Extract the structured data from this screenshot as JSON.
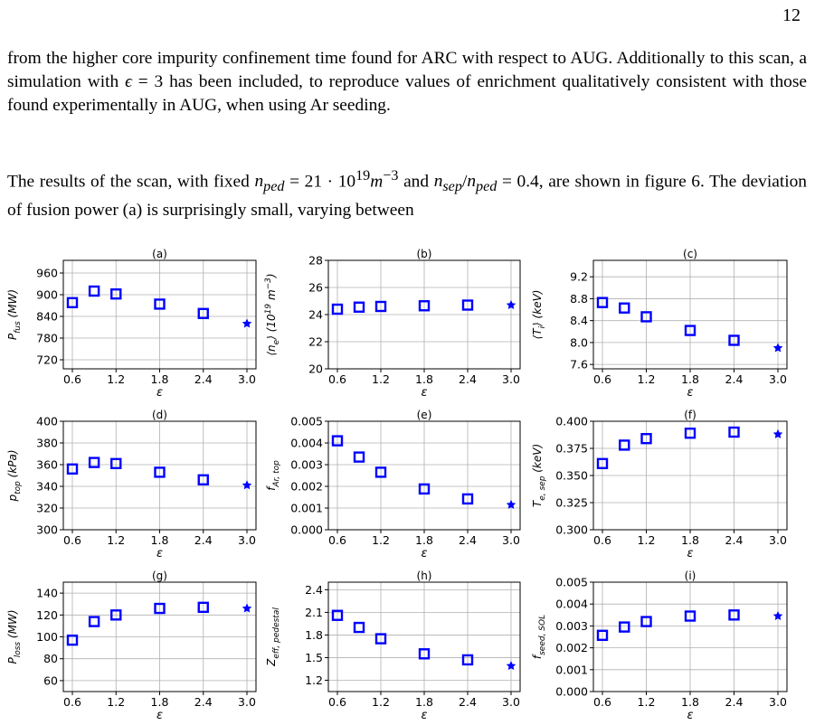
{
  "page": {
    "number": "12",
    "paragraph1": "from the higher core impurity confinement time found for ARC with respect to AUG. Additionally to this scan, a simulation with ϵ = 3 has been included, to reproduce values of enrichment qualitatively consistent with those found experimentally in AUG, when using Ar seeding.",
    "paragraph2": "The results of the scan, with fixed n_ped = 21 · 10^19 m^−3 and n_sep/n_ped = 0.4, are shown in figure 6. The deviation of fusion power (a) is surprisingly small, varying between"
  },
  "colors": {
    "marker": "#0000ff",
    "grid": "#b0b0b0"
  },
  "chart_data": [
    {
      "type": "scatter",
      "panel_title": "(a)",
      "ylabel": "P_fus (MW)",
      "xlabel": "ε",
      "xlim": [
        0.6,
        3.0
      ],
      "ylim": [
        695,
        995
      ],
      "xticks": [
        0.6,
        1.2,
        1.8,
        2.4,
        3.0
      ],
      "xtick_labels": [
        "0.6",
        "1.2",
        "1.8",
        "2.4",
        "3.0"
      ],
      "yticks": [
        720,
        780,
        840,
        900,
        960
      ],
      "ytick_labels": [
        "720",
        "780",
        "840",
        "900",
        "960"
      ],
      "x": [
        0.6,
        0.9,
        1.2,
        1.8,
        2.4
      ],
      "y": [
        878,
        910,
        902,
        874,
        848
      ],
      "extra_point": {
        "x": 3.0,
        "y": 820,
        "marker": "star"
      }
    },
    {
      "type": "scatter",
      "panel_title": "(b)",
      "ylabel": "⟨n_e⟩ (10^19 m^−3)",
      "xlabel": "ε",
      "xlim": [
        0.6,
        3.0
      ],
      "ylim": [
        20,
        28
      ],
      "xticks": [
        0.6,
        1.2,
        1.8,
        2.4,
        3.0
      ],
      "xtick_labels": [
        "0.6",
        "1.2",
        "1.8",
        "2.4",
        "3.0"
      ],
      "yticks": [
        20,
        22,
        24,
        26,
        28
      ],
      "ytick_labels": [
        "20",
        "22",
        "24",
        "26",
        "28"
      ],
      "x": [
        0.6,
        0.9,
        1.2,
        1.8,
        2.4
      ],
      "y": [
        24.4,
        24.55,
        24.6,
        24.65,
        24.7
      ],
      "extra_point": {
        "x": 3.0,
        "y": 24.7,
        "marker": "star"
      }
    },
    {
      "type": "scatter",
      "panel_title": "(c)",
      "ylabel": "⟨T_i⟩ (keV)",
      "xlabel": "ε",
      "xlim": [
        0.6,
        3.0
      ],
      "ylim": [
        7.52,
        9.5
      ],
      "xticks": [
        0.6,
        1.2,
        1.8,
        2.4,
        3.0
      ],
      "xtick_labels": [
        "0.6",
        "1.2",
        "1.8",
        "2.4",
        "3.0"
      ],
      "yticks": [
        7.6,
        8.0,
        8.4,
        8.8,
        9.2
      ],
      "ytick_labels": [
        "7.6",
        "8.0",
        "8.4",
        "8.8",
        "9.2"
      ],
      "x": [
        0.6,
        0.9,
        1.2,
        1.8,
        2.4
      ],
      "y": [
        8.73,
        8.63,
        8.47,
        8.22,
        8.04
      ],
      "extra_point": {
        "x": 3.0,
        "y": 7.9,
        "marker": "star"
      }
    },
    {
      "type": "scatter",
      "panel_title": "(d)",
      "ylabel": "p_top (kPa)",
      "xlabel": "ε",
      "xlim": [
        0.6,
        3.0
      ],
      "ylim": [
        300,
        400
      ],
      "xticks": [
        0.6,
        1.2,
        1.8,
        2.4,
        3.0
      ],
      "xtick_labels": [
        "0.6",
        "1.2",
        "1.8",
        "2.4",
        "3.0"
      ],
      "yticks": [
        300,
        320,
        340,
        360,
        380,
        400
      ],
      "ytick_labels": [
        "300",
        "320",
        "340",
        "360",
        "380",
        "400"
      ],
      "x": [
        0.6,
        0.9,
        1.2,
        1.8,
        2.4
      ],
      "y": [
        356,
        362,
        361,
        353,
        346
      ],
      "extra_point": {
        "x": 3.0,
        "y": 341,
        "marker": "star"
      }
    },
    {
      "type": "scatter",
      "panel_title": "(e)",
      "ylabel": "f_Ar, top",
      "xlabel": "ε",
      "xlim": [
        0.6,
        3.0
      ],
      "ylim": [
        0.0,
        0.005
      ],
      "xticks": [
        0.6,
        1.2,
        1.8,
        2.4,
        3.0
      ],
      "xtick_labels": [
        "0.6",
        "1.2",
        "1.8",
        "2.4",
        "3.0"
      ],
      "yticks": [
        0.0,
        0.001,
        0.002,
        0.003,
        0.004,
        0.005
      ],
      "ytick_labels": [
        "0.000",
        "0.001",
        "0.002",
        "0.003",
        "0.004",
        "0.005"
      ],
      "x": [
        0.6,
        0.9,
        1.2,
        1.8,
        2.4
      ],
      "y": [
        0.0041,
        0.00335,
        0.00265,
        0.00188,
        0.00142
      ],
      "extra_point": {
        "x": 3.0,
        "y": 0.00115,
        "marker": "star"
      }
    },
    {
      "type": "scatter",
      "panel_title": "(f)",
      "ylabel": "T_e, sep (keV)",
      "xlabel": "ε",
      "xlim": [
        0.6,
        3.0
      ],
      "ylim": [
        0.3,
        0.4
      ],
      "xticks": [
        0.6,
        1.2,
        1.8,
        2.4,
        3.0
      ],
      "xtick_labels": [
        "0.6",
        "1.2",
        "1.8",
        "2.4",
        "3.0"
      ],
      "yticks": [
        0.3,
        0.325,
        0.35,
        0.375,
        0.4
      ],
      "ytick_labels": [
        "0.300",
        "0.325",
        "0.350",
        "0.375",
        "0.400"
      ],
      "x": [
        0.6,
        0.9,
        1.2,
        1.8,
        2.4
      ],
      "y": [
        0.361,
        0.378,
        0.384,
        0.389,
        0.39
      ],
      "extra_point": {
        "x": 3.0,
        "y": 0.388,
        "marker": "star"
      }
    },
    {
      "type": "scatter",
      "panel_title": "(g)",
      "ylabel": "P_loss (MW)",
      "xlabel": "ε",
      "xlim": [
        0.6,
        3.0
      ],
      "ylim": [
        50,
        150
      ],
      "xticks": [
        0.6,
        1.2,
        1.8,
        2.4,
        3.0
      ],
      "xtick_labels": [
        "0.6",
        "1.2",
        "1.8",
        "2.4",
        "3.0"
      ],
      "yticks": [
        60,
        80,
        100,
        120,
        140
      ],
      "ytick_labels": [
        "60",
        "80",
        "100",
        "120",
        "140"
      ],
      "x": [
        0.6,
        0.9,
        1.2,
        1.8,
        2.4
      ],
      "y": [
        97,
        114,
        120,
        126,
        127
      ],
      "extra_point": {
        "x": 3.0,
        "y": 126,
        "marker": "star"
      }
    },
    {
      "type": "scatter",
      "panel_title": "(h)",
      "ylabel": "Z_eff, pedestal",
      "xlabel": "ε",
      "xlim": [
        0.6,
        3.0
      ],
      "ylim": [
        1.05,
        2.5
      ],
      "xticks": [
        0.6,
        1.2,
        1.8,
        2.4,
        3.0
      ],
      "xtick_labels": [
        "0.6",
        "1.2",
        "1.8",
        "2.4",
        "3.0"
      ],
      "yticks": [
        1.2,
        1.5,
        1.8,
        2.1,
        2.4
      ],
      "ytick_labels": [
        "1.2",
        "1.5",
        "1.8",
        "2.1",
        "2.4"
      ],
      "x": [
        0.6,
        0.9,
        1.2,
        1.8,
        2.4
      ],
      "y": [
        2.06,
        1.9,
        1.75,
        1.55,
        1.47
      ],
      "extra_point": {
        "x": 3.0,
        "y": 1.39,
        "marker": "star"
      }
    },
    {
      "type": "scatter",
      "panel_title": "(i)",
      "ylabel": "f_seed, SOL",
      "xlabel": "ε",
      "xlim": [
        0.6,
        3.0
      ],
      "ylim": [
        0.0,
        0.005
      ],
      "xticks": [
        0.6,
        1.2,
        1.8,
        2.4,
        3.0
      ],
      "xtick_labels": [
        "0.6",
        "1.2",
        "1.8",
        "2.4",
        "3.0"
      ],
      "yticks": [
        0.0,
        0.001,
        0.002,
        0.003,
        0.004,
        0.005
      ],
      "ytick_labels": [
        "0.000",
        "0.001",
        "0.002",
        "0.003",
        "0.004",
        "0.005"
      ],
      "x": [
        0.6,
        0.9,
        1.2,
        1.8,
        2.4
      ],
      "y": [
        0.00257,
        0.00295,
        0.0032,
        0.00345,
        0.0035
      ],
      "extra_point": {
        "x": 3.0,
        "y": 0.00345,
        "marker": "star"
      }
    }
  ]
}
